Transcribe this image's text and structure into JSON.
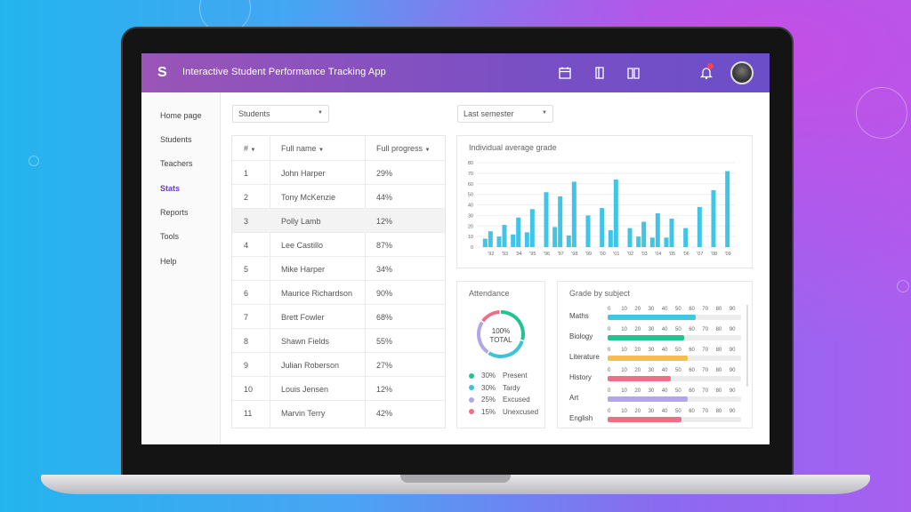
{
  "header": {
    "title": "Interactive Student Performance Tracking App",
    "logo": "S",
    "notification_count": "1"
  },
  "sidebar": {
    "items": [
      {
        "label": "Home page"
      },
      {
        "label": "Students"
      },
      {
        "label": "Teachers"
      },
      {
        "label": "Stats",
        "active": true
      },
      {
        "label": "Reports"
      },
      {
        "label": "Tools"
      },
      {
        "label": "Help"
      }
    ]
  },
  "filters": {
    "group": "Students",
    "period": "Last semester"
  },
  "table": {
    "headers": [
      "#",
      "Full name",
      "Full progress"
    ],
    "rows": [
      [
        "1",
        "John Harper",
        "29%"
      ],
      [
        "2",
        "Tony McKenzie",
        "44%"
      ],
      [
        "3",
        "Polly Lamb",
        "12%"
      ],
      [
        "4",
        "Lee Castillo",
        "87%"
      ],
      [
        "5",
        "Mike Harper",
        "34%"
      ],
      [
        "6",
        "Maurice Richardson",
        "90%"
      ],
      [
        "7",
        "Brett Fowler",
        "68%"
      ],
      [
        "8",
        "Shawn Fields",
        "55%"
      ],
      [
        "9",
        "Julian Roberson",
        "27%"
      ],
      [
        "10",
        "Louis Jensen",
        "12%"
      ],
      [
        "11",
        "Marvin Terry",
        "42%"
      ]
    ]
  },
  "chart_data": [
    {
      "type": "bar",
      "title": "Individual average grade",
      "categories": [
        "'92",
        "'93",
        "'94",
        "'95",
        "'96",
        "'97",
        "'98",
        "'99",
        "'00",
        "'01",
        "'02",
        "'03",
        "'04",
        "'05",
        "'06",
        "'07",
        "'08",
        "'09"
      ],
      "series": [
        {
          "values": [
            15,
            21,
            28,
            36,
            52,
            48,
            62,
            30,
            37,
            64,
            18,
            24,
            32,
            27,
            18,
            38,
            54,
            72
          ]
        },
        {
          "values": [
            8,
            10,
            12,
            14,
            0,
            19,
            11,
            0,
            0,
            16,
            0,
            10,
            9,
            9,
            0,
            0,
            0,
            0
          ]
        }
      ],
      "yticks": [
        0,
        10,
        20,
        30,
        40,
        50,
        60,
        70,
        80
      ],
      "ylim": [
        0,
        80
      ],
      "color": "#40c4e8"
    },
    {
      "type": "pie",
      "title": "Attendance",
      "center_label": "100%",
      "center_sub": "TOTAL",
      "slices": [
        {
          "label": "Present",
          "value": 30,
          "color": "#22c38e"
        },
        {
          "label": "Tardy",
          "value": 30,
          "color": "#3ec1dc"
        },
        {
          "label": "Excused",
          "value": 25,
          "color": "#b2a6e6"
        },
        {
          "label": "Unexcused",
          "value": 15,
          "color": "#ef6f86"
        }
      ]
    },
    {
      "type": "bar",
      "orientation": "horizontal",
      "title": "Grade by subject",
      "xticks": [
        "0",
        "10",
        "20",
        "30",
        "40",
        "50",
        "60",
        "70",
        "80",
        "90"
      ],
      "categories": [
        "Maths",
        "Biology",
        "Literature",
        "History",
        "Art",
        "English"
      ],
      "values": [
        66,
        57,
        60,
        47,
        60,
        55
      ],
      "colors": [
        "#40c4e8",
        "#22c38e",
        "#f3c04f",
        "#ef6f86",
        "#b2a6e6",
        "#ef6f86"
      ],
      "xlim": [
        0,
        100
      ]
    }
  ],
  "legend_values": [
    "30%",
    "30%",
    "25%",
    "15%"
  ]
}
